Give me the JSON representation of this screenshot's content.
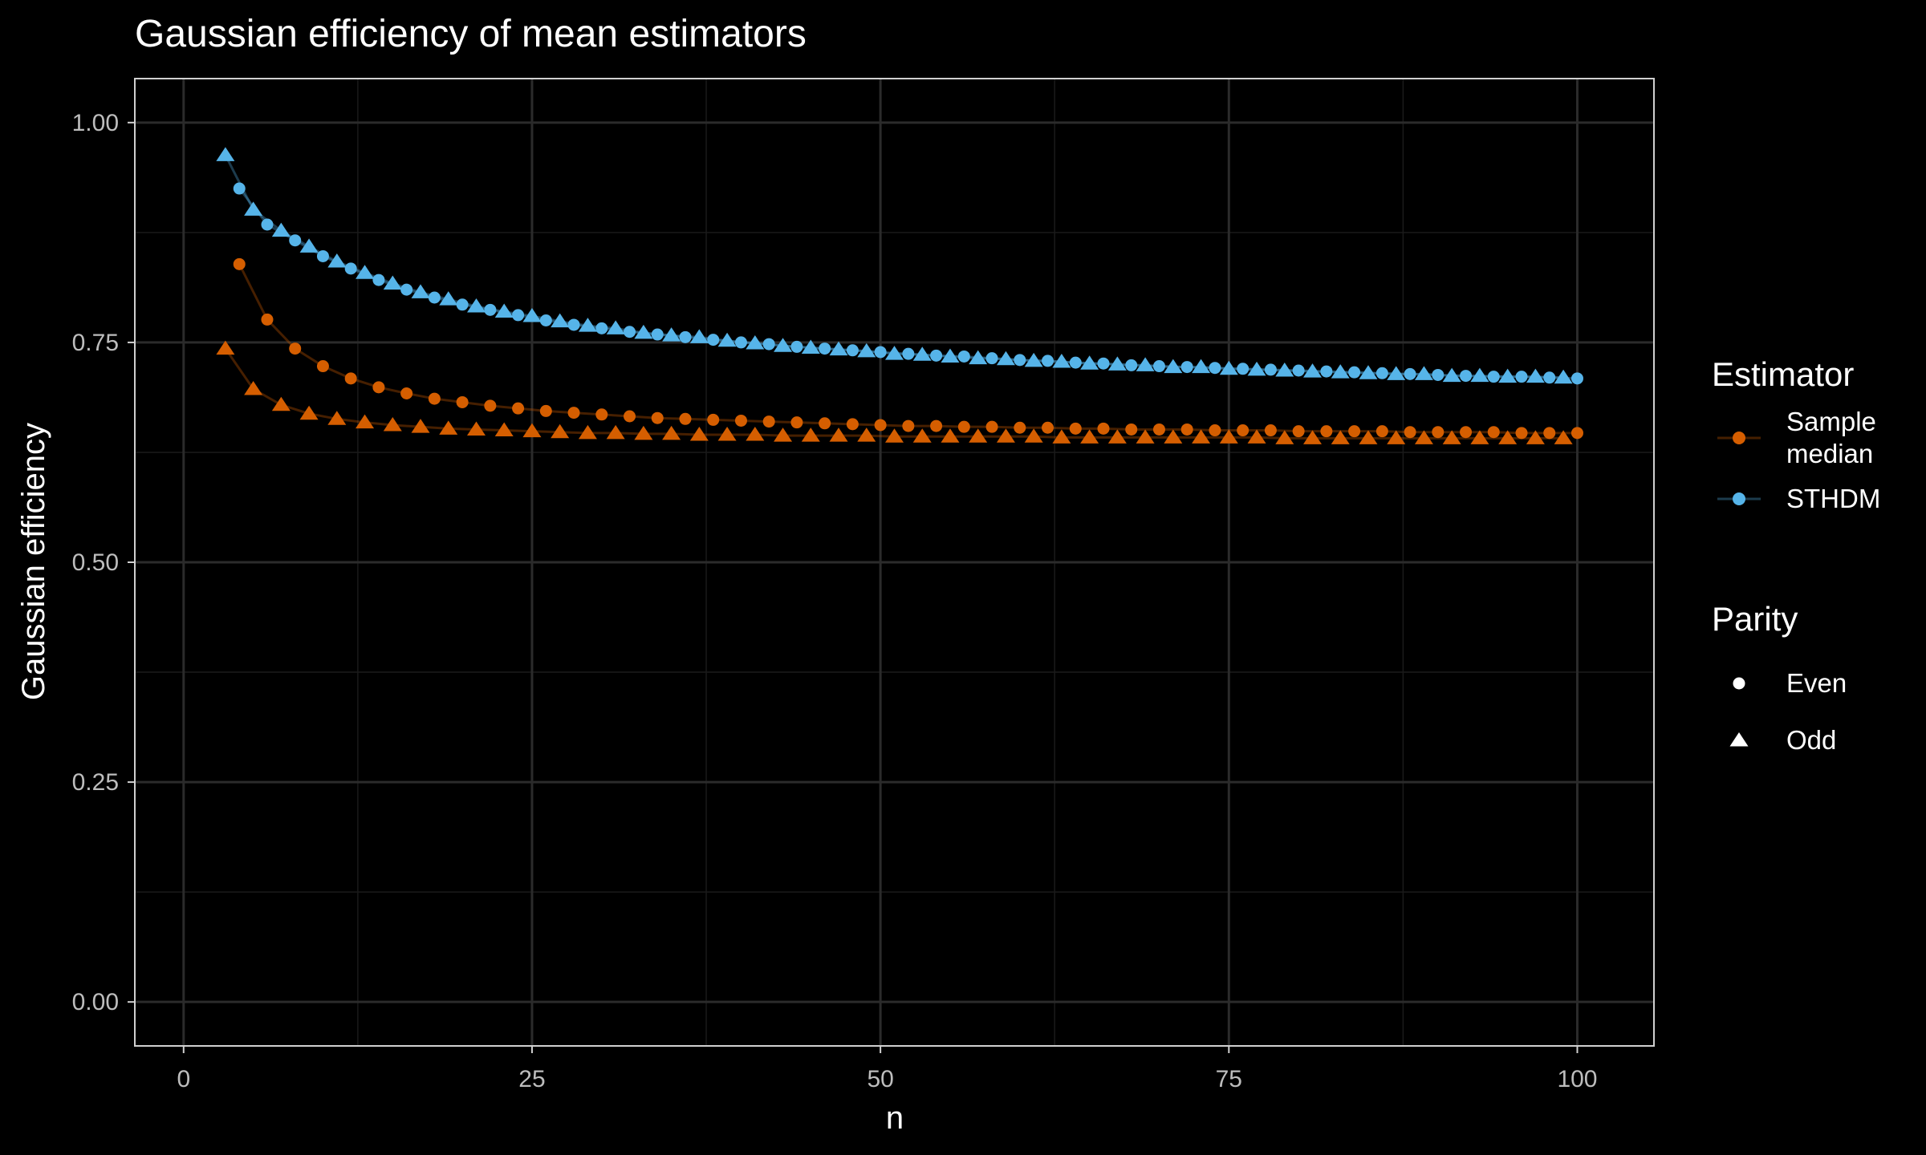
{
  "chart_data": {
    "type": "scatter",
    "title": "Gaussian efficiency of mean estimators",
    "xlabel": "n",
    "ylabel": "Gaussian efficiency",
    "xlim": [
      -3.5,
      105.5
    ],
    "ylim": [
      -0.05,
      1.05
    ],
    "x_ticks": [
      0,
      25,
      50,
      75,
      100
    ],
    "x_tick_labels": [
      "0",
      "25",
      "50",
      "75",
      "100"
    ],
    "y_ticks": [
      0,
      0.25,
      0.5,
      0.75,
      1
    ],
    "y_tick_labels": [
      "0.00",
      "0.25",
      "0.50",
      "0.75",
      "1.00"
    ],
    "grid": true,
    "legend_position": "right",
    "legends": {
      "color": {
        "title": "Estimator",
        "entries": [
          {
            "label_lines": [
              "Sample",
              "median"
            ],
            "color": "#D55E00"
          },
          {
            "label_lines": [
              "STHDM"
            ],
            "color": "#56B4E9"
          }
        ]
      },
      "shape": {
        "title": "Parity",
        "entries": [
          {
            "label": "Even",
            "shape": "circle"
          },
          {
            "label": "Odd",
            "shape": "triangle"
          }
        ]
      }
    },
    "series": [
      {
        "name": "Sample median",
        "color": "#D55E00",
        "even": {
          "x": [
            4,
            6,
            8,
            10,
            12,
            14,
            16,
            18,
            20,
            22,
            24,
            26,
            28,
            30,
            32,
            34,
            36,
            38,
            40,
            42,
            44,
            46,
            48,
            50,
            52,
            54,
            56,
            58,
            60,
            62,
            64,
            66,
            68,
            70,
            72,
            74,
            76,
            78,
            80,
            82,
            84,
            86,
            88,
            90,
            92,
            94,
            96,
            98,
            100
          ],
          "y": [
            0.839,
            0.776,
            0.743,
            0.723,
            0.709,
            0.699,
            0.692,
            0.686,
            0.682,
            0.678,
            0.675,
            0.672,
            0.67,
            0.668,
            0.666,
            0.664,
            0.663,
            0.662,
            0.661,
            0.66,
            0.659,
            0.658,
            0.657,
            0.656,
            0.655,
            0.655,
            0.654,
            0.654,
            0.653,
            0.653,
            0.652,
            0.652,
            0.651,
            0.651,
            0.651,
            0.65,
            0.65,
            0.65,
            0.649,
            0.649,
            0.649,
            0.649,
            0.648,
            0.648,
            0.648,
            0.648,
            0.647,
            0.647,
            0.647
          ]
        },
        "odd": {
          "x": [
            3,
            5,
            7,
            9,
            11,
            13,
            15,
            17,
            19,
            21,
            23,
            25,
            27,
            29,
            31,
            33,
            35,
            37,
            39,
            41,
            43,
            45,
            47,
            49,
            51,
            53,
            55,
            57,
            59,
            61,
            63,
            65,
            67,
            69,
            71,
            73,
            75,
            77,
            79,
            81,
            83,
            85,
            87,
            89,
            91,
            93,
            95,
            97,
            99
          ],
          "y": [
            0.743,
            0.697,
            0.679,
            0.669,
            0.663,
            0.659,
            0.656,
            0.654,
            0.652,
            0.651,
            0.65,
            0.649,
            0.648,
            0.647,
            0.647,
            0.646,
            0.646,
            0.645,
            0.645,
            0.645,
            0.644,
            0.644,
            0.644,
            0.644,
            0.643,
            0.643,
            0.643,
            0.643,
            0.643,
            0.643,
            0.642,
            0.642,
            0.642,
            0.642,
            0.642,
            0.642,
            0.642,
            0.642,
            0.641,
            0.641,
            0.641,
            0.641,
            0.641,
            0.641,
            0.641,
            0.641,
            0.641,
            0.641,
            0.641
          ]
        }
      },
      {
        "name": "STHDM",
        "color": "#56B4E9",
        "even": {
          "x": [
            4,
            6,
            8,
            10,
            12,
            14,
            16,
            18,
            20,
            22,
            24,
            26,
            28,
            30,
            32,
            34,
            36,
            38,
            40,
            42,
            44,
            46,
            48,
            50,
            52,
            54,
            56,
            58,
            60,
            62,
            64,
            66,
            68,
            70,
            72,
            74,
            76,
            78,
            80,
            82,
            84,
            86,
            88,
            90,
            92,
            94,
            96,
            98,
            100
          ],
          "y": [
            0.925,
            0.884,
            0.866,
            0.848,
            0.834,
            0.821,
            0.81,
            0.801,
            0.793,
            0.787,
            0.781,
            0.775,
            0.77,
            0.766,
            0.762,
            0.759,
            0.756,
            0.753,
            0.75,
            0.748,
            0.745,
            0.743,
            0.741,
            0.739,
            0.737,
            0.735,
            0.734,
            0.732,
            0.73,
            0.729,
            0.727,
            0.726,
            0.724,
            0.723,
            0.722,
            0.721,
            0.72,
            0.719,
            0.718,
            0.717,
            0.716,
            0.715,
            0.714,
            0.713,
            0.712,
            0.711,
            0.711,
            0.71,
            0.709
          ]
        },
        "odd": {
          "x": [
            3,
            5,
            7,
            9,
            11,
            13,
            15,
            17,
            19,
            21,
            23,
            25,
            27,
            29,
            31,
            33,
            35,
            37,
            39,
            41,
            43,
            45,
            47,
            49,
            51,
            53,
            55,
            57,
            59,
            61,
            63,
            65,
            67,
            69,
            71,
            73,
            75,
            77,
            79,
            81,
            83,
            85,
            87,
            89,
            91,
            93,
            95,
            97,
            99
          ],
          "y": [
            0.963,
            0.901,
            0.877,
            0.859,
            0.842,
            0.829,
            0.817,
            0.807,
            0.799,
            0.791,
            0.785,
            0.78,
            0.774,
            0.769,
            0.766,
            0.761,
            0.758,
            0.756,
            0.752,
            0.749,
            0.746,
            0.744,
            0.742,
            0.74,
            0.737,
            0.736,
            0.734,
            0.732,
            0.731,
            0.729,
            0.728,
            0.726,
            0.725,
            0.724,
            0.722,
            0.722,
            0.72,
            0.719,
            0.718,
            0.717,
            0.716,
            0.715,
            0.714,
            0.714,
            0.712,
            0.712,
            0.711,
            0.711,
            0.71
          ]
        }
      }
    ]
  }
}
